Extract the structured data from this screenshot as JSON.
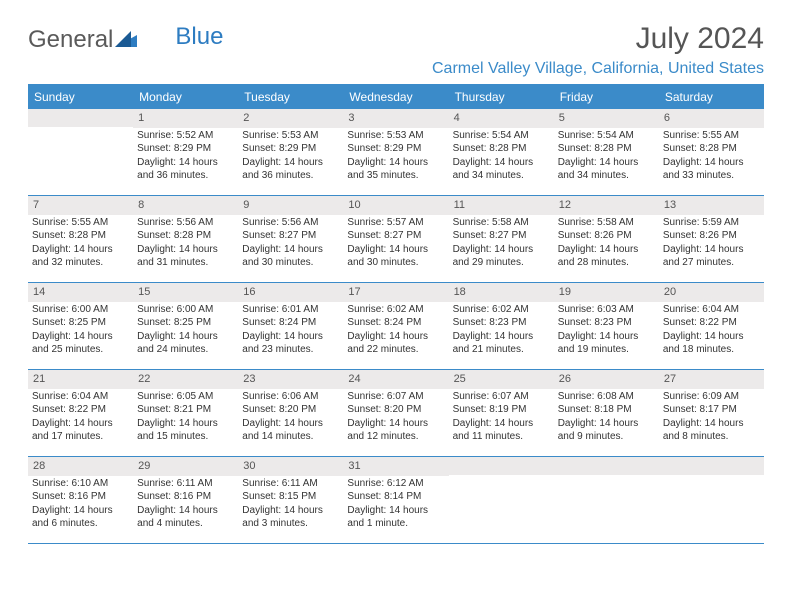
{
  "logo": {
    "text1": "General",
    "text2": "Blue"
  },
  "title": "July 2024",
  "location": "Carmel Valley Village, California, United States",
  "colors": {
    "accent": "#3b8bc9",
    "header_bg": "#3b8bc9",
    "daynum_bg": "#eceaea",
    "text": "#333333",
    "title_text": "#555555"
  },
  "day_names": [
    "Sunday",
    "Monday",
    "Tuesday",
    "Wednesday",
    "Thursday",
    "Friday",
    "Saturday"
  ],
  "weeks": [
    [
      {
        "num": "",
        "sunrise": "",
        "sunset": "",
        "daylight": ""
      },
      {
        "num": "1",
        "sunrise": "Sunrise: 5:52 AM",
        "sunset": "Sunset: 8:29 PM",
        "daylight": "Daylight: 14 hours and 36 minutes."
      },
      {
        "num": "2",
        "sunrise": "Sunrise: 5:53 AM",
        "sunset": "Sunset: 8:29 PM",
        "daylight": "Daylight: 14 hours and 36 minutes."
      },
      {
        "num": "3",
        "sunrise": "Sunrise: 5:53 AM",
        "sunset": "Sunset: 8:29 PM",
        "daylight": "Daylight: 14 hours and 35 minutes."
      },
      {
        "num": "4",
        "sunrise": "Sunrise: 5:54 AM",
        "sunset": "Sunset: 8:28 PM",
        "daylight": "Daylight: 14 hours and 34 minutes."
      },
      {
        "num": "5",
        "sunrise": "Sunrise: 5:54 AM",
        "sunset": "Sunset: 8:28 PM",
        "daylight": "Daylight: 14 hours and 34 minutes."
      },
      {
        "num": "6",
        "sunrise": "Sunrise: 5:55 AM",
        "sunset": "Sunset: 8:28 PM",
        "daylight": "Daylight: 14 hours and 33 minutes."
      }
    ],
    [
      {
        "num": "7",
        "sunrise": "Sunrise: 5:55 AM",
        "sunset": "Sunset: 8:28 PM",
        "daylight": "Daylight: 14 hours and 32 minutes."
      },
      {
        "num": "8",
        "sunrise": "Sunrise: 5:56 AM",
        "sunset": "Sunset: 8:28 PM",
        "daylight": "Daylight: 14 hours and 31 minutes."
      },
      {
        "num": "9",
        "sunrise": "Sunrise: 5:56 AM",
        "sunset": "Sunset: 8:27 PM",
        "daylight": "Daylight: 14 hours and 30 minutes."
      },
      {
        "num": "10",
        "sunrise": "Sunrise: 5:57 AM",
        "sunset": "Sunset: 8:27 PM",
        "daylight": "Daylight: 14 hours and 30 minutes."
      },
      {
        "num": "11",
        "sunrise": "Sunrise: 5:58 AM",
        "sunset": "Sunset: 8:27 PM",
        "daylight": "Daylight: 14 hours and 29 minutes."
      },
      {
        "num": "12",
        "sunrise": "Sunrise: 5:58 AM",
        "sunset": "Sunset: 8:26 PM",
        "daylight": "Daylight: 14 hours and 28 minutes."
      },
      {
        "num": "13",
        "sunrise": "Sunrise: 5:59 AM",
        "sunset": "Sunset: 8:26 PM",
        "daylight": "Daylight: 14 hours and 27 minutes."
      }
    ],
    [
      {
        "num": "14",
        "sunrise": "Sunrise: 6:00 AM",
        "sunset": "Sunset: 8:25 PM",
        "daylight": "Daylight: 14 hours and 25 minutes."
      },
      {
        "num": "15",
        "sunrise": "Sunrise: 6:00 AM",
        "sunset": "Sunset: 8:25 PM",
        "daylight": "Daylight: 14 hours and 24 minutes."
      },
      {
        "num": "16",
        "sunrise": "Sunrise: 6:01 AM",
        "sunset": "Sunset: 8:24 PM",
        "daylight": "Daylight: 14 hours and 23 minutes."
      },
      {
        "num": "17",
        "sunrise": "Sunrise: 6:02 AM",
        "sunset": "Sunset: 8:24 PM",
        "daylight": "Daylight: 14 hours and 22 minutes."
      },
      {
        "num": "18",
        "sunrise": "Sunrise: 6:02 AM",
        "sunset": "Sunset: 8:23 PM",
        "daylight": "Daylight: 14 hours and 21 minutes."
      },
      {
        "num": "19",
        "sunrise": "Sunrise: 6:03 AM",
        "sunset": "Sunset: 8:23 PM",
        "daylight": "Daylight: 14 hours and 19 minutes."
      },
      {
        "num": "20",
        "sunrise": "Sunrise: 6:04 AM",
        "sunset": "Sunset: 8:22 PM",
        "daylight": "Daylight: 14 hours and 18 minutes."
      }
    ],
    [
      {
        "num": "21",
        "sunrise": "Sunrise: 6:04 AM",
        "sunset": "Sunset: 8:22 PM",
        "daylight": "Daylight: 14 hours and 17 minutes."
      },
      {
        "num": "22",
        "sunrise": "Sunrise: 6:05 AM",
        "sunset": "Sunset: 8:21 PM",
        "daylight": "Daylight: 14 hours and 15 minutes."
      },
      {
        "num": "23",
        "sunrise": "Sunrise: 6:06 AM",
        "sunset": "Sunset: 8:20 PM",
        "daylight": "Daylight: 14 hours and 14 minutes."
      },
      {
        "num": "24",
        "sunrise": "Sunrise: 6:07 AM",
        "sunset": "Sunset: 8:20 PM",
        "daylight": "Daylight: 14 hours and 12 minutes."
      },
      {
        "num": "25",
        "sunrise": "Sunrise: 6:07 AM",
        "sunset": "Sunset: 8:19 PM",
        "daylight": "Daylight: 14 hours and 11 minutes."
      },
      {
        "num": "26",
        "sunrise": "Sunrise: 6:08 AM",
        "sunset": "Sunset: 8:18 PM",
        "daylight": "Daylight: 14 hours and 9 minutes."
      },
      {
        "num": "27",
        "sunrise": "Sunrise: 6:09 AM",
        "sunset": "Sunset: 8:17 PM",
        "daylight": "Daylight: 14 hours and 8 minutes."
      }
    ],
    [
      {
        "num": "28",
        "sunrise": "Sunrise: 6:10 AM",
        "sunset": "Sunset: 8:16 PM",
        "daylight": "Daylight: 14 hours and 6 minutes."
      },
      {
        "num": "29",
        "sunrise": "Sunrise: 6:11 AM",
        "sunset": "Sunset: 8:16 PM",
        "daylight": "Daylight: 14 hours and 4 minutes."
      },
      {
        "num": "30",
        "sunrise": "Sunrise: 6:11 AM",
        "sunset": "Sunset: 8:15 PM",
        "daylight": "Daylight: 14 hours and 3 minutes."
      },
      {
        "num": "31",
        "sunrise": "Sunrise: 6:12 AM",
        "sunset": "Sunset: 8:14 PM",
        "daylight": "Daylight: 14 hours and 1 minute."
      },
      {
        "num": "",
        "sunrise": "",
        "sunset": "",
        "daylight": ""
      },
      {
        "num": "",
        "sunrise": "",
        "sunset": "",
        "daylight": ""
      },
      {
        "num": "",
        "sunrise": "",
        "sunset": "",
        "daylight": ""
      }
    ]
  ]
}
